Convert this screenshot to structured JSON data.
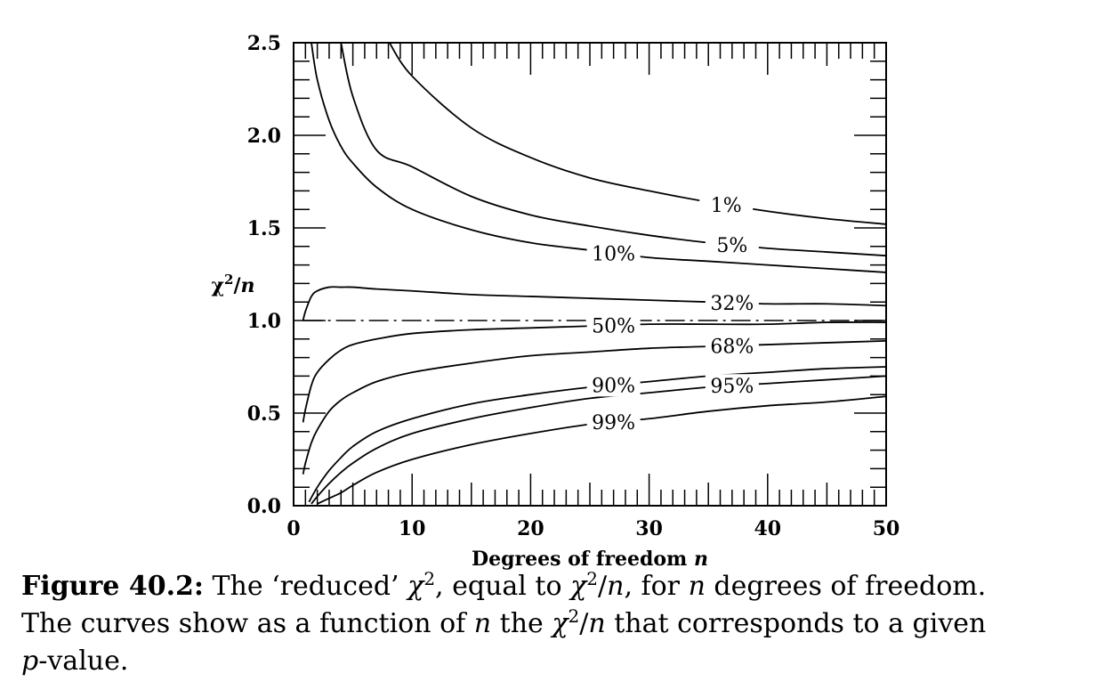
{
  "chart_data": {
    "type": "line",
    "title": "",
    "xlabel": "Degrees of freedom n",
    "ylabel": "χ²/n",
    "xlim": [
      0,
      50
    ],
    "ylim": [
      0,
      2.5
    ],
    "xticks": [
      0,
      10,
      20,
      30,
      40,
      50
    ],
    "xtick_labels": [
      "0",
      "10",
      "20",
      "30",
      "40",
      "50"
    ],
    "yticks": [
      0,
      0.5,
      1.0,
      1.5,
      2.0,
      2.5
    ],
    "ytick_labels": [
      "0.0",
      "0.5",
      "1.0",
      "1.5",
      "2.0",
      "2.5"
    ],
    "reference_line": {
      "y": 1.0,
      "style": "dash-dot"
    },
    "grid": false,
    "series": [
      {
        "name": "1%",
        "label_at": 36.5,
        "x": [
          8,
          10,
          15,
          20,
          25,
          30,
          35,
          40,
          45,
          50
        ],
        "y": [
          2.51,
          2.32,
          2.04,
          1.88,
          1.77,
          1.7,
          1.64,
          1.59,
          1.55,
          1.52
        ]
      },
      {
        "name": "5%",
        "label_at": 37,
        "x": [
          4,
          5,
          7,
          10,
          15,
          20,
          25,
          30,
          35,
          40,
          45,
          50
        ],
        "y": [
          2.5,
          2.21,
          1.92,
          1.83,
          1.67,
          1.57,
          1.51,
          1.46,
          1.42,
          1.39,
          1.37,
          1.35
        ]
      },
      {
        "name": "10%",
        "label_at": 27,
        "x": [
          1.5,
          2,
          3,
          4,
          5,
          7,
          10,
          15,
          20,
          25,
          30,
          35,
          40,
          45,
          50
        ],
        "y": [
          2.5,
          2.3,
          2.08,
          1.94,
          1.85,
          1.72,
          1.6,
          1.49,
          1.42,
          1.38,
          1.34,
          1.32,
          1.3,
          1.28,
          1.26
        ]
      },
      {
        "name": "32%",
        "label_at": 37,
        "x": [
          0.8,
          1,
          1.5,
          2,
          3,
          4,
          5,
          7,
          10,
          15,
          20,
          25,
          30,
          35,
          40,
          45,
          50
        ],
        "y": [
          1.0,
          1.05,
          1.13,
          1.16,
          1.18,
          1.18,
          1.18,
          1.17,
          1.16,
          1.14,
          1.13,
          1.12,
          1.11,
          1.1,
          1.09,
          1.09,
          1.08
        ]
      },
      {
        "name": "50%",
        "label_at": 27,
        "x": [
          0.8,
          1,
          1.5,
          2,
          3,
          4,
          5,
          7,
          10,
          15,
          20,
          25,
          30,
          35,
          40,
          45,
          50
        ],
        "y": [
          0.45,
          0.52,
          0.65,
          0.72,
          0.79,
          0.84,
          0.87,
          0.9,
          0.93,
          0.95,
          0.96,
          0.97,
          0.98,
          0.98,
          0.98,
          0.99,
          0.99
        ]
      },
      {
        "name": "68%",
        "label_at": 37,
        "x": [
          0.8,
          1,
          1.5,
          2,
          3,
          4,
          5,
          7,
          10,
          15,
          20,
          25,
          30,
          35,
          40,
          45,
          50
        ],
        "y": [
          0.17,
          0.23,
          0.34,
          0.41,
          0.51,
          0.57,
          0.61,
          0.67,
          0.72,
          0.77,
          0.81,
          0.83,
          0.85,
          0.86,
          0.87,
          0.88,
          0.89
        ]
      },
      {
        "name": "90%",
        "label_at": 27,
        "x": [
          1.3,
          2,
          3,
          4,
          5,
          7,
          10,
          15,
          20,
          25,
          30,
          35,
          40,
          45,
          50
        ],
        "y": [
          0.02,
          0.1,
          0.19,
          0.26,
          0.32,
          0.4,
          0.47,
          0.55,
          0.6,
          0.64,
          0.67,
          0.7,
          0.72,
          0.74,
          0.75
        ]
      },
      {
        "name": "95%",
        "label_at": 37,
        "x": [
          1.5,
          2,
          3,
          4,
          5,
          7,
          10,
          15,
          20,
          25,
          30,
          35,
          40,
          45,
          50
        ],
        "y": [
          0.01,
          0.05,
          0.12,
          0.18,
          0.23,
          0.31,
          0.39,
          0.47,
          0.53,
          0.58,
          0.61,
          0.64,
          0.66,
          0.68,
          0.7
        ]
      },
      {
        "name": "99%",
        "label_at": 27,
        "x": [
          2,
          3,
          4,
          5,
          7,
          10,
          15,
          20,
          25,
          30,
          35,
          40,
          45,
          50
        ],
        "y": [
          0.01,
          0.04,
          0.07,
          0.11,
          0.18,
          0.25,
          0.33,
          0.39,
          0.44,
          0.47,
          0.51,
          0.54,
          0.56,
          0.59
        ]
      }
    ]
  },
  "caption": {
    "label": "Figure 40.2:",
    "line1_a": "The ‘reduced’ ",
    "chi": "χ",
    "sq": "2",
    "line1_b": ", equal to ",
    "over_n": "/",
    "n": "n",
    "line1_c": ", for ",
    "line1_d": " degrees of freedom.",
    "line2_a": "The curves show as a function of ",
    "line2_b": " the ",
    "line2_c": " that corresponds to a given",
    "p": "p",
    "line3": "-value."
  }
}
